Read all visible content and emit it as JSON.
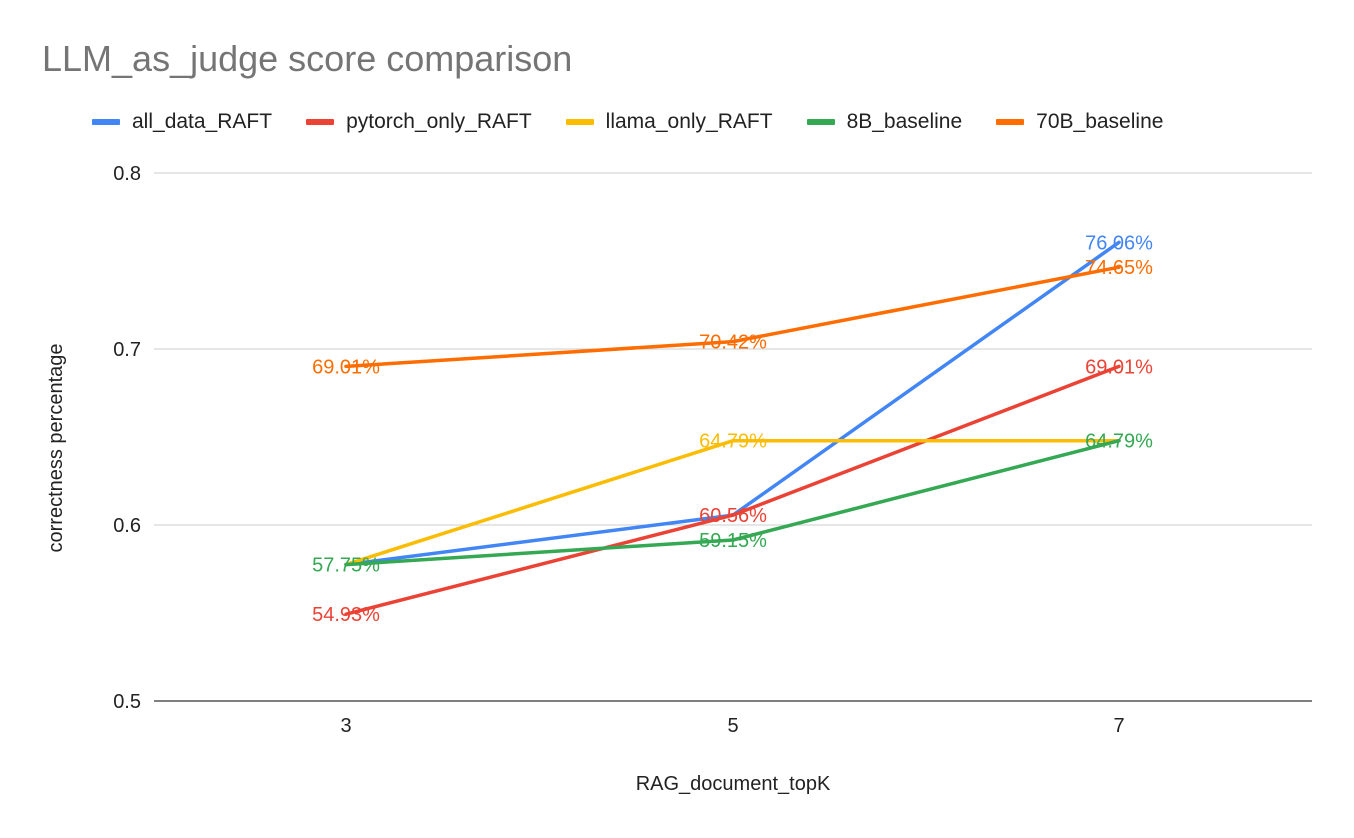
{
  "chart_data": {
    "type": "line",
    "title": "LLM_as_judge score comparison",
    "xlabel": "RAG_document_topK",
    "ylabel": "correctness percentage",
    "categories": [
      "3",
      "5",
      "7"
    ],
    "ylim": [
      0.5,
      0.8
    ],
    "yticks": [
      "0.5",
      "0.6",
      "0.7",
      "0.8"
    ],
    "grid": true,
    "legend_position": "top",
    "series": [
      {
        "name": "all_data_RAFT",
        "color": "#4285F4",
        "values": [
          0.5775,
          0.6056,
          0.7606
        ],
        "labels": [
          "",
          "",
          "76.06%"
        ]
      },
      {
        "name": "pytorch_only_RAFT",
        "color": "#EA4335",
        "values": [
          0.5493,
          0.6056,
          0.6901
        ],
        "labels": [
          "54.93%",
          "60.56%",
          "69.01%"
        ]
      },
      {
        "name": "llama_only_RAFT",
        "color": "#FBBC04",
        "values": [
          0.5775,
          0.6479,
          0.6479
        ],
        "labels": [
          "",
          "64.79%",
          ""
        ]
      },
      {
        "name": "8B_baseline",
        "color": "#34A853",
        "values": [
          0.5775,
          0.5915,
          0.6479
        ],
        "labels": [
          "57.75%",
          "59.15%",
          "64.79%"
        ]
      },
      {
        "name": "70B_baseline",
        "color": "#FF6D01",
        "values": [
          0.6901,
          0.7042,
          0.7465
        ],
        "labels": [
          "69.01%",
          "70.42%",
          "74.65%"
        ]
      }
    ]
  }
}
